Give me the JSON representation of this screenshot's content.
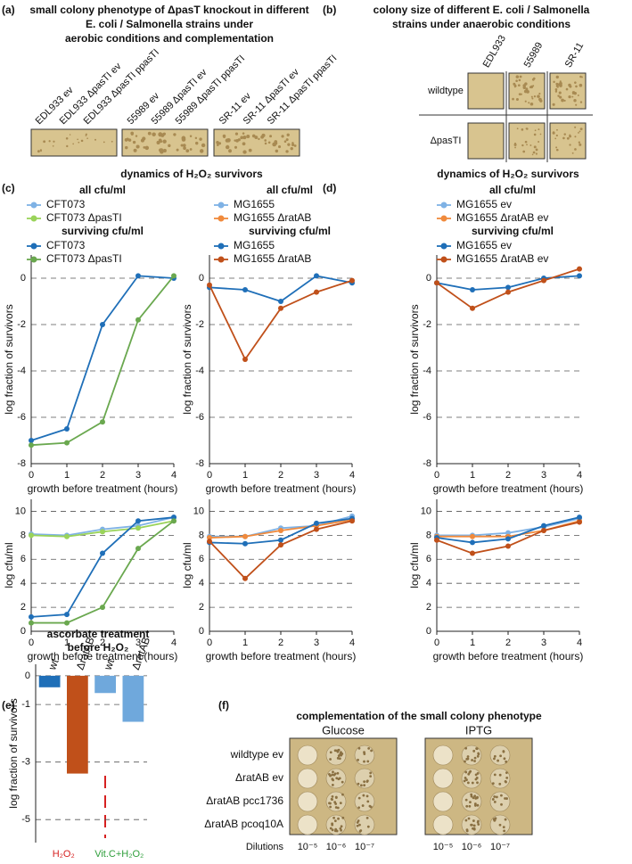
{
  "panels": {
    "a": {
      "label": "(a)",
      "title": [
        "small colony phenotype of ΔpasT knockout in different",
        "E. coli / Salmonella strains under",
        "aerobic conditions and complementation"
      ],
      "strains": [
        "EDL933 ev",
        "EDL933 ΔpasTI ev",
        "EDL933 ΔpasTI ppasTI",
        "55989 ev",
        "55989 ΔpasTI ev",
        "55989 ΔpasTI ppasTI",
        "SR-11 ev",
        "SR-11 ΔpasTI ev",
        "SR-11 ΔpasTI ppasTI"
      ]
    },
    "b": {
      "label": "(b)",
      "title": [
        "colony size of different E. coli / Salmonella",
        "strains under anaerobic conditions"
      ],
      "columns": [
        "EDL933",
        "55989",
        "SR-11"
      ],
      "rows": [
        "wildtype",
        "ΔpasTI"
      ]
    },
    "c": {
      "label": "(c)",
      "title": "dynamics of H₂O₂ survivors"
    },
    "d": {
      "label": "(d)",
      "title": "dynamics of H₂O₂ survivors"
    },
    "e": {
      "label": "(e)"
    },
    "f": {
      "label": "(f)",
      "title": "complementation of the small colony phenotype",
      "conditions": [
        "Glucose",
        "IPTG"
      ],
      "rows": [
        "wildtype ev",
        "ΔratAB ev",
        "ΔratAB pcc1736",
        "ΔratAB pcoq10A"
      ],
      "dilutions_label": "Dilutions",
      "dilutions": [
        "10⁻⁵",
        "10⁻⁶",
        "10⁻⁷",
        "10⁻⁵",
        "10⁻⁶",
        "10⁻⁷"
      ]
    }
  },
  "chart_data": [
    {
      "type": "line",
      "legend_titles": [
        "all cfu/ml",
        "surviving cfu/ml"
      ],
      "xlabel": "growth before treatment (hours)",
      "ylabel": "log fraction of survivors",
      "x": [
        0,
        1,
        2,
        3,
        4
      ],
      "xlim": [
        0,
        4
      ],
      "xticks": [
        0,
        1,
        2,
        3,
        4
      ],
      "ylim": [
        -8,
        1
      ],
      "yticks": [
        0,
        -2,
        -4,
        -6,
        -8
      ],
      "grid": true,
      "series": [
        {
          "name": "CFT073",
          "color": "#1f6fb8",
          "values": [
            -7,
            -6.5,
            -2,
            0.1,
            0
          ]
        },
        {
          "name": "CFT073 ΔpasTI",
          "color": "#6aa84f",
          "values": [
            -7.2,
            -7.1,
            -6.2,
            -1.8,
            0.1
          ]
        }
      ]
    },
    {
      "type": "line",
      "xlabel": "growth before treatment (hours)",
      "ylabel": "log cfu/ml",
      "x": [
        0,
        1,
        2,
        3,
        4
      ],
      "xlim": [
        0,
        4
      ],
      "xticks": [
        0,
        1,
        2,
        3,
        4
      ],
      "ylim": [
        0,
        11
      ],
      "yticks": [
        0,
        2,
        4,
        6,
        8,
        10
      ],
      "grid": true,
      "series": [
        {
          "name": "CFT073",
          "color": "#7fb2e5",
          "values": [
            8.1,
            8.0,
            8.5,
            8.8,
            9.5
          ]
        },
        {
          "name": "CFT073 ΔpasTI",
          "color": "#9ad35a",
          "values": [
            8.0,
            7.9,
            8.3,
            8.6,
            9.2
          ]
        },
        {
          "color": "#1f6fb8",
          "values": [
            1.2,
            1.4,
            6.5,
            9.2,
            9.5
          ]
        },
        {
          "color": "#6aa84f",
          "values": [
            0.7,
            0.7,
            2.0,
            6.9,
            9.2
          ]
        }
      ]
    },
    {
      "type": "line",
      "legend_titles": [
        "all cfu/ml",
        "surviving cfu/ml"
      ],
      "xlabel": "growth before treatment (hours)",
      "ylabel": "log fraction of survivors",
      "x": [
        0,
        1,
        2,
        3,
        4
      ],
      "xlim": [
        0,
        4
      ],
      "xticks": [
        0,
        1,
        2,
        3,
        4
      ],
      "ylim": [
        -8,
        1
      ],
      "yticks": [
        0,
        -2,
        -4,
        -6,
        -8
      ],
      "grid": true,
      "series": [
        {
          "name": "MG1655",
          "color": "#1f6fb8",
          "values": [
            -0.4,
            -0.5,
            -1.0,
            0.1,
            -0.2
          ]
        },
        {
          "name": "MG1655 ΔratAB",
          "color": "#c0501a",
          "values": [
            -0.3,
            -3.5,
            -1.3,
            -0.6,
            -0.1
          ]
        }
      ]
    },
    {
      "type": "line",
      "xlabel": "growth before treatment (hours)",
      "ylabel": "log cfu/ml",
      "x": [
        0,
        1,
        2,
        3,
        4
      ],
      "xlim": [
        0,
        4
      ],
      "xticks": [
        0,
        1,
        2,
        3,
        4
      ],
      "ylim": [
        0,
        11
      ],
      "yticks": [
        0,
        2,
        4,
        6,
        8,
        10
      ],
      "grid": true,
      "series": [
        {
          "name": "MG1655",
          "color": "#7fb2e5",
          "values": [
            7.9,
            7.9,
            8.6,
            8.8,
            9.6
          ]
        },
        {
          "name": "MG1655 ΔratAB",
          "color": "#f08a3c",
          "values": [
            7.8,
            7.9,
            8.4,
            8.8,
            9.3
          ]
        },
        {
          "color": "#1f6fb8",
          "values": [
            7.4,
            7.3,
            7.6,
            9.0,
            9.4
          ]
        },
        {
          "color": "#c0501a",
          "values": [
            7.5,
            4.4,
            7.2,
            8.5,
            9.2
          ]
        }
      ]
    },
    {
      "type": "line",
      "legend_titles": [
        "all cfu/ml",
        "surviving cfu/ml"
      ],
      "xlabel": "growth before treatment (hours)",
      "ylabel": "log fraction of survivors",
      "x": [
        0,
        1,
        2,
        3,
        4
      ],
      "xlim": [
        0,
        4
      ],
      "xticks": [
        0,
        1,
        2,
        3,
        4
      ],
      "ylim": [
        -8,
        1
      ],
      "yticks": [
        0,
        -2,
        -4,
        -6,
        -8
      ],
      "grid": true,
      "series": [
        {
          "name": "MG1655 ev",
          "color": "#1f6fb8",
          "values": [
            -0.2,
            -0.5,
            -0.4,
            0.0,
            0.1
          ]
        },
        {
          "name": "MG1655 ΔratAB ev",
          "color": "#c0501a",
          "values": [
            -0.2,
            -1.3,
            -0.6,
            -0.1,
            0.4
          ]
        }
      ]
    },
    {
      "type": "line",
      "xlabel": "growth before treatment (hours)",
      "ylabel": "log cfu/ml",
      "x": [
        0,
        1,
        2,
        3,
        4
      ],
      "xlim": [
        0,
        4
      ],
      "xticks": [
        0,
        1,
        2,
        3,
        4
      ],
      "ylim": [
        0,
        11
      ],
      "yticks": [
        0,
        2,
        4,
        6,
        8,
        10
      ],
      "grid": true,
      "series": [
        {
          "name": "MG1655 ev",
          "color": "#7fb2e5",
          "values": [
            8.0,
            8.0,
            8.2,
            8.7,
            9.4
          ]
        },
        {
          "name": "MG1655 ΔratAB ev",
          "color": "#f08a3c",
          "values": [
            7.9,
            7.9,
            7.9,
            8.4,
            9.2
          ]
        },
        {
          "color": "#1f6fb8",
          "values": [
            7.8,
            7.4,
            7.7,
            8.8,
            9.5
          ]
        },
        {
          "color": "#c0501a",
          "values": [
            7.6,
            6.5,
            7.1,
            8.4,
            9.1
          ]
        }
      ]
    },
    {
      "type": "bar",
      "title": [
        "ascorbate treatment",
        "before H₂O₂"
      ],
      "ylabel": "log fraction of survivors",
      "categories": [
        "wt",
        "ΔratAB",
        "wt",
        "ΔratAB"
      ],
      "values": [
        -0.4,
        -3.4,
        -0.6,
        -1.6
      ],
      "colors": [
        "#1f6fb8",
        "#c0501a",
        "#6fa8dc",
        "#6fa8dc"
      ],
      "ylim": [
        -5.8,
        0.4
      ],
      "yticks": [
        0,
        -1,
        -3,
        -5
      ],
      "grid": true,
      "groups": [
        "H₂O₂",
        "Vit.C+H₂O₂"
      ],
      "group_colors": [
        "#d62020",
        "#2e9e3a"
      ]
    }
  ]
}
